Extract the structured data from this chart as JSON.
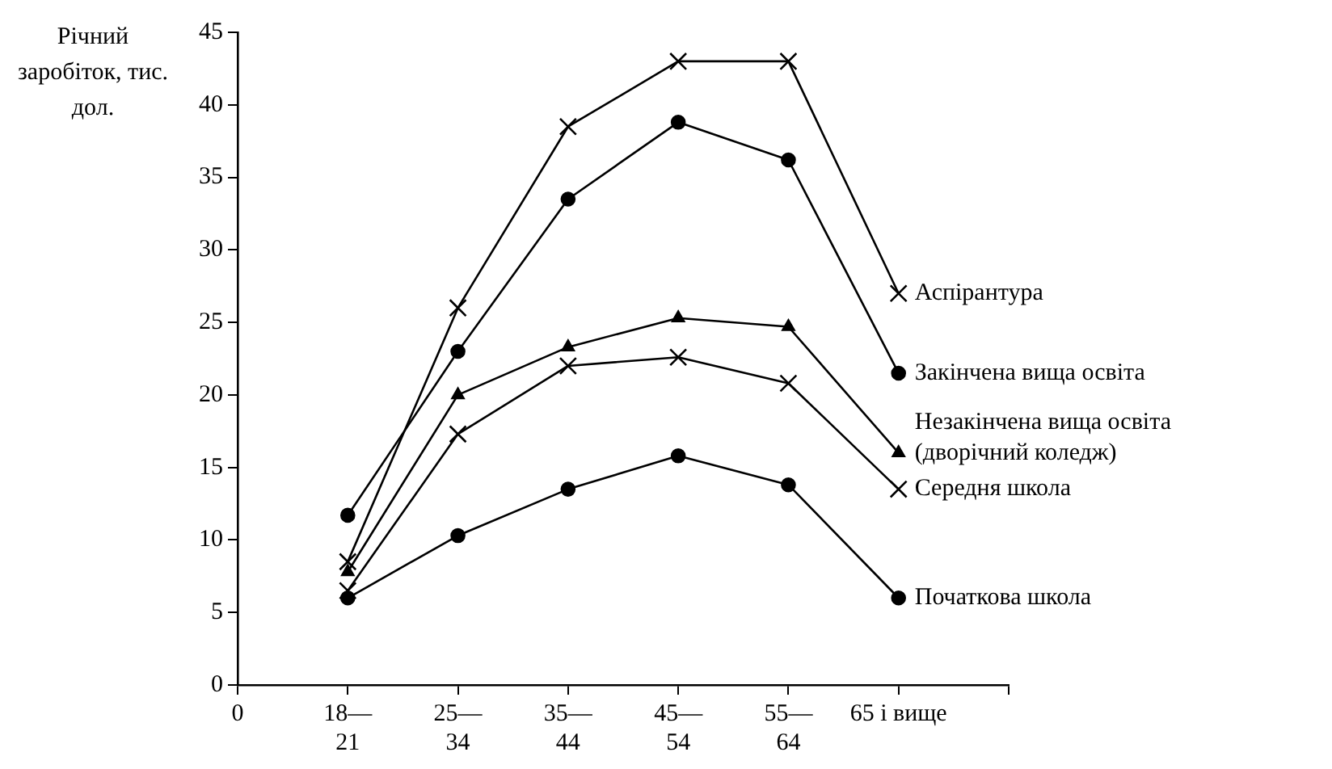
{
  "chart_data": {
    "type": "line",
    "ylabel": "Річний заробіток, тис. дол.",
    "categories": [
      "0",
      "18—21",
      "25—34",
      "35—44",
      "45—54",
      "55—64",
      "65 і вище",
      null
    ],
    "ylim": [
      0,
      45
    ],
    "yticks": [
      0,
      5,
      10,
      15,
      20,
      25,
      30,
      35,
      40,
      45
    ],
    "grid": false,
    "legend": false,
    "line_style": "solid",
    "series": [
      {
        "name": "Аспірантура",
        "color": "#000000",
        "marker": "cross",
        "values": [
          null,
          8.5,
          26,
          38.5,
          43,
          43,
          27,
          null
        ]
      },
      {
        "name": "Закінчена вища освіта",
        "color": "#000000",
        "marker": "circle",
        "values": [
          null,
          11.7,
          23,
          33.5,
          38.8,
          36.2,
          21.5,
          null
        ]
      },
      {
        "name": "Незакінчена вища освіта (дворічний коледж)",
        "color": "#000000",
        "marker": "triangle",
        "values": [
          null,
          7.8,
          20,
          23.3,
          25.3,
          24.7,
          16,
          null
        ]
      },
      {
        "name": "Середня школа",
        "color": "#000000",
        "marker": "cross",
        "values": [
          null,
          6.5,
          17.3,
          22,
          22.6,
          20.8,
          13.5,
          null
        ]
      },
      {
        "name": "Початкова школа",
        "color": "#000000",
        "marker": "circle",
        "values": [
          null,
          6,
          10.3,
          13.5,
          15.8,
          13.8,
          6,
          null
        ]
      }
    ]
  }
}
